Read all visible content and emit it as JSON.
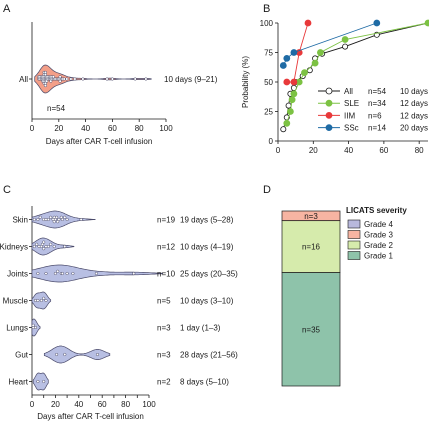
{
  "figure": {
    "colors": {
      "axis": "#1a1a1a",
      "violin_stroke": "#4a4a6a",
      "panel_a_fill": "#f39f88",
      "panel_c_fill": "#b8bfe3",
      "dot_fill": "#ffffff",
      "all": "#1a1a1a",
      "sle": "#7cc243",
      "iim": "#e8393a",
      "ssc": "#1f6ba5",
      "grade4": "#b8b8dc",
      "grade3": "#f7b4a2",
      "grade2": "#d6ebac",
      "grade1": "#8ec3aa"
    }
  },
  "chart_data": [
    {
      "panel": "A",
      "type": "violin",
      "xlabel": "Days after CAR T-cell infusion",
      "xlim": [
        0,
        100
      ],
      "xticks": [
        0,
        20,
        40,
        60,
        80,
        100
      ],
      "categories": [
        "All"
      ],
      "n_label": "n=54",
      "summary": "10 days (9–21)",
      "points": [
        5,
        5,
        6,
        6,
        7,
        7,
        8,
        8,
        8,
        9,
        9,
        9,
        9,
        9,
        9,
        10,
        10,
        10,
        10,
        10,
        10,
        10,
        11,
        11,
        11,
        12,
        12,
        13,
        13,
        14,
        14,
        14,
        15,
        15,
        16,
        16,
        17,
        18,
        19,
        20,
        21,
        21,
        21,
        22,
        23,
        24,
        26,
        29,
        32,
        38,
        56,
        60,
        77,
        85
      ],
      "grid": false
    },
    {
      "panel": "B",
      "type": "line",
      "ylabel": "Probability (%)",
      "xlim": [
        0,
        85
      ],
      "xticks": [
        0,
        20,
        40,
        60,
        80
      ],
      "ylim": [
        0,
        100
      ],
      "yticks": [
        0,
        25,
        50,
        75,
        100
      ],
      "legend_position": "bottom-right",
      "series": [
        {
          "name": "All",
          "n": "n=54",
          "median": "10 days",
          "color_key": "all",
          "marker": "open",
          "points": [
            [
              3,
              10
            ],
            [
              5,
              20
            ],
            [
              6,
              30
            ],
            [
              7,
              40
            ],
            [
              9,
              45
            ],
            [
              10,
              50
            ],
            [
              14,
              55
            ],
            [
              18,
              60
            ],
            [
              21,
              70
            ],
            [
              25,
              74
            ],
            [
              38,
              80
            ],
            [
              56,
              90
            ],
            [
              85,
              100
            ]
          ]
        },
        {
          "name": "SLE",
          "n": "n=34",
          "median": "12 days",
          "color_key": "sle",
          "marker": "filled",
          "points": [
            [
              5,
              15
            ],
            [
              7,
              25
            ],
            [
              8,
              35
            ],
            [
              9,
              40
            ],
            [
              12,
              50
            ],
            [
              15,
              58
            ],
            [
              21,
              66
            ],
            [
              24,
              75
            ],
            [
              38,
              86
            ],
            [
              85,
              100
            ]
          ]
        },
        {
          "name": "IIM",
          "n": "n=6",
          "median": "12 days",
          "color_key": "iim",
          "marker": "filled",
          "points": [
            [
              5,
              50
            ],
            [
              9,
              50
            ],
            [
              12,
              75
            ],
            [
              17,
              100
            ]
          ]
        },
        {
          "name": "SSc",
          "n": "n=14",
          "median": "20 days",
          "color_key": "ssc",
          "marker": "filled",
          "points": [
            [
              3,
              64
            ],
            [
              5,
              70
            ],
            [
              9,
              75
            ],
            [
              56,
              100
            ]
          ]
        }
      ]
    },
    {
      "panel": "C",
      "type": "violin",
      "xlabel": "Days after CAR T-cell infusion",
      "xlim": [
        0,
        100
      ],
      "xticks": [
        0,
        10,
        20,
        30,
        40,
        50,
        60,
        70,
        80,
        90,
        100
      ],
      "xticklabels": [
        "0",
        "",
        "20",
        "",
        "40",
        "",
        "60",
        "",
        "80",
        "",
        "100"
      ],
      "categories": [
        "Skin",
        "Kidneys",
        "Joints",
        "Muscle",
        "Lungs",
        "Gut",
        "Heart"
      ],
      "series": [
        {
          "name": "Skin",
          "n": "n=19",
          "summary": "19 days (5–28)",
          "points": [
            2,
            5,
            7,
            10,
            12,
            14,
            16,
            18,
            19,
            19,
            20,
            21,
            22,
            23,
            25,
            26,
            28,
            30,
            42
          ]
        },
        {
          "name": "Kidneys",
          "n": "n=12",
          "summary": "10 days (4–19)",
          "points": [
            2,
            4,
            6,
            8,
            9,
            10,
            10,
            12,
            14,
            16,
            19,
            28
          ]
        },
        {
          "name": "Joints",
          "n": "n=10",
          "summary": "25 days (20–35)",
          "points": [
            5,
            12,
            20,
            22,
            25,
            26,
            30,
            35,
            55,
            87
          ]
        },
        {
          "name": "Muscle",
          "n": "n=5",
          "summary": "10 days (3–10)",
          "points": [
            3,
            5,
            8,
            10,
            12
          ]
        },
        {
          "name": "Lungs",
          "n": "n=3",
          "summary": "1 day (1–3)",
          "points": [
            1,
            1,
            3
          ]
        },
        {
          "name": "Gut",
          "n": "n=3",
          "summary": "28 days (21–56)",
          "points": [
            21,
            28,
            56
          ]
        },
        {
          "name": "Heart",
          "n": "n=2",
          "summary": "8 days (5–10)",
          "points": [
            5,
            10
          ]
        }
      ]
    },
    {
      "panel": "D",
      "type": "stacked_bar",
      "legend_title": "LICATS severity",
      "legend_position": "right",
      "categories": [
        "Grade 4",
        "Grade 3",
        "Grade 2",
        "Grade 1"
      ],
      "color_keys": [
        "grade4",
        "grade3",
        "grade2",
        "grade1"
      ],
      "values": [
        0,
        3,
        16,
        35
      ],
      "labels": [
        "",
        "n=3",
        "n=16",
        "n=35"
      ]
    }
  ]
}
